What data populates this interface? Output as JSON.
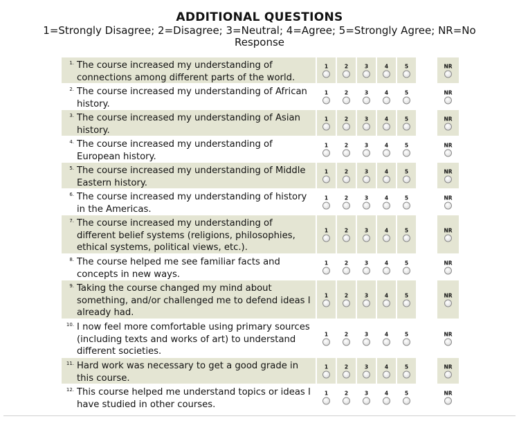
{
  "title": "ADDITIONAL QUESTIONS",
  "scale_legend": "1=Strongly Disagree; 2=Disagree; 3=Neutral; 4=Agree; 5=Strongly Agree; NR=No Response",
  "options": [
    "1",
    "2",
    "3",
    "4",
    "5"
  ],
  "nr_label": "NR",
  "questions": [
    {
      "number": "1.",
      "text": "The course increased my understanding of connections among different parts of the world."
    },
    {
      "number": "2.",
      "text": "The course increased my understanding of African history."
    },
    {
      "number": "3.",
      "text": "The course increased my understanding of Asian history."
    },
    {
      "number": "4.",
      "text": "The course increased my understanding of European history."
    },
    {
      "number": "5.",
      "text": "The course increased my understanding of Middle Eastern history."
    },
    {
      "number": "6.",
      "text": "The course increased my understanding of history in the Americas."
    },
    {
      "number": "7.",
      "text": "The course increased my understanding of different belief systems (religions, philosophies, ethical systems, political views, etc.)."
    },
    {
      "number": "8.",
      "text": "The course helped me see familiar facts and concepts in new ways."
    },
    {
      "number": "9.",
      "text": "Taking the course changed my mind about something, and/or challenged me to defend ideas I already had."
    },
    {
      "number": "10.",
      "text": "I now feel more comfortable using primary sources (including texts and works of art) to understand different societies."
    },
    {
      "number": "11.",
      "text": "Hard work was necessary to get a good grade in this course."
    },
    {
      "number": "12.",
      "text": "This course helped me understand topics or ideas I have studied in other courses."
    }
  ]
}
